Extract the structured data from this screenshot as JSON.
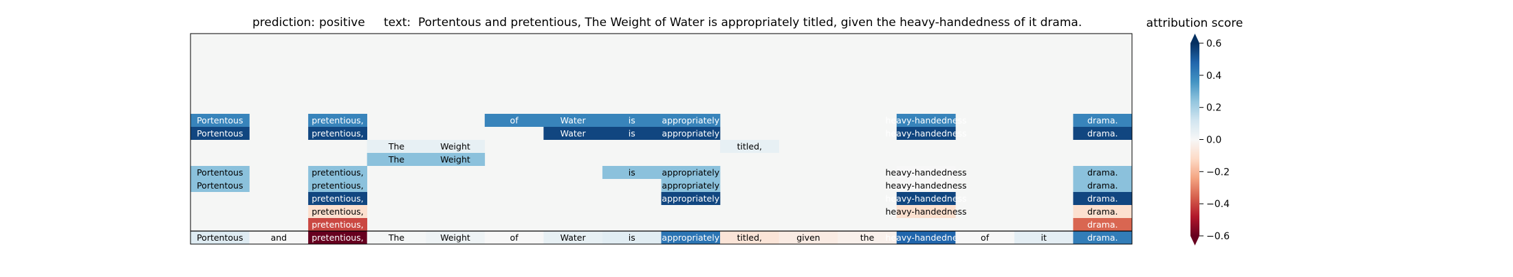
{
  "chart_data": {
    "type": "heatmap",
    "title": {
      "prediction_label": "prediction:",
      "prediction_value": "positive",
      "text_label": "text:",
      "text_value": "Portentous and pretentious, The Weight of Water is appropriately titled, given the heavy-handedness of it drama."
    },
    "tokens": [
      "Portentous",
      "and",
      "pretentious,",
      "The",
      "Weight",
      "of",
      "Water",
      "is",
      "appropriately",
      "titled,",
      "given",
      "the",
      "heavy-handedness",
      "of",
      "it",
      "drama."
    ],
    "levels": [
      {
        "cells": [
          {
            "t": 0,
            "v": 0.08
          },
          {
            "t": 1,
            "v": 0.0
          },
          {
            "t": 2,
            "v": -0.6
          },
          {
            "t": 3,
            "v": 0.01
          },
          {
            "t": 4,
            "v": 0.03
          },
          {
            "t": 5,
            "v": 0.0
          },
          {
            "t": 6,
            "v": 0.05
          },
          {
            "t": 7,
            "v": 0.07
          },
          {
            "t": 8,
            "v": 0.44
          },
          {
            "t": 9,
            "v": -0.08
          },
          {
            "t": 10,
            "v": -0.05
          },
          {
            "t": 11,
            "v": -0.03
          },
          {
            "t": 12,
            "v": 0.48
          },
          {
            "t": 13,
            "v": 0.0
          },
          {
            "t": 14,
            "v": 0.06
          },
          {
            "t": 15,
            "v": 0.42
          }
        ]
      },
      {
        "cells": [
          {
            "t": 2,
            "v": -0.4
          },
          {
            "t": 15,
            "v": -0.35
          }
        ]
      },
      {
        "cells": [
          {
            "t": 2,
            "v": -0.1
          },
          {
            "t": 12,
            "v": -0.1
          },
          {
            "t": 15,
            "v": -0.1
          }
        ]
      },
      {
        "cells": [
          {
            "t": 2,
            "v": 0.55
          },
          {
            "t": 8,
            "v": 0.55
          },
          {
            "t": 12,
            "v": 0.55
          },
          {
            "t": 15,
            "v": 0.55
          }
        ]
      },
      {
        "cells": [
          {
            "t": 0,
            "v": 0.25
          },
          {
            "t": 2,
            "v": 0.25
          },
          {
            "t": 8,
            "v": 0.25
          },
          {
            "t": 12,
            "v": 0.0
          },
          {
            "t": 15,
            "v": 0.25
          }
        ]
      },
      {
        "cells": [
          {
            "t": 0,
            "v": 0.25
          },
          {
            "t": 2,
            "v": 0.25
          },
          {
            "t": 7,
            "v": 0.25
          },
          {
            "t": 8,
            "v": 0.25
          },
          {
            "t": 12,
            "v": 0.0
          },
          {
            "t": 15,
            "v": 0.25
          }
        ]
      },
      {
        "cells": [
          {
            "t": 3,
            "v": 0.25
          },
          {
            "t": 4,
            "v": 0.25
          }
        ]
      },
      {
        "cells": [
          {
            "t": 3,
            "v": 0.05
          },
          {
            "t": 4,
            "v": 0.05
          },
          {
            "t": 9,
            "v": 0.05
          }
        ]
      },
      {
        "cells": [
          {
            "t": 0,
            "v": 0.55
          },
          {
            "t": 2,
            "v": 0.55
          },
          {
            "t": 6,
            "v": 0.55
          },
          {
            "t": 7,
            "v": 0.55
          },
          {
            "t": 8,
            "v": 0.55
          },
          {
            "t": 12,
            "v": 0.55
          },
          {
            "t": 15,
            "v": 0.55
          }
        ]
      },
      {
        "cells": [
          {
            "t": 0,
            "v": 0.4
          },
          {
            "t": 2,
            "v": 0.4
          },
          {
            "t": 5,
            "v": 0.4
          },
          {
            "t": 6,
            "v": 0.4
          },
          {
            "t": 7,
            "v": 0.4
          },
          {
            "t": 8,
            "v": 0.4
          },
          {
            "t": 12,
            "v": 0.4
          },
          {
            "t": 15,
            "v": 0.4
          }
        ]
      }
    ],
    "colorbar": {
      "label": "attribution score",
      "min": -0.6,
      "max": 0.6,
      "ticks": [
        0.6,
        0.4,
        0.2,
        0.0,
        -0.2,
        -0.4,
        -0.6
      ],
      "tick_labels": [
        "0.6",
        "0.4",
        "0.2",
        "0.0",
        "−0.2",
        "−0.4",
        "−0.6"
      ],
      "colormap": "RdBu",
      "extend": "both"
    },
    "colors": {
      "background": "#f5f6f5",
      "frame": "#000000"
    }
  }
}
